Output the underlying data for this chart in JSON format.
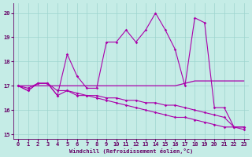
{
  "xlabel": "Windchill (Refroidissement éolien,°C)",
  "xlim": [
    -0.5,
    23.5
  ],
  "ylim": [
    14.8,
    20.4
  ],
  "yticks": [
    15,
    16,
    17,
    18,
    19,
    20
  ],
  "xticks": [
    0,
    1,
    2,
    3,
    4,
    5,
    6,
    7,
    8,
    9,
    10,
    11,
    12,
    13,
    14,
    15,
    16,
    17,
    18,
    19,
    20,
    21,
    22,
    23
  ],
  "bg_color": "#c5ece6",
  "line_color": "#aa00aa",
  "grid_color": "#9dd5ce",
  "series": {
    "wiggly": [
      17.0,
      16.8,
      17.1,
      17.1,
      16.6,
      18.3,
      17.4,
      16.9,
      16.9,
      18.8,
      18.8,
      19.3,
      18.8,
      19.3,
      20.0,
      19.3,
      18.5,
      17.0,
      19.8,
      19.6,
      16.1,
      16.1,
      15.3,
      15.3
    ],
    "flat": [
      17.0,
      17.0,
      17.0,
      17.0,
      17.0,
      17.0,
      17.0,
      17.0,
      17.0,
      17.0,
      17.0,
      17.0,
      17.0,
      17.0,
      17.0,
      17.0,
      17.0,
      17.1,
      17.2,
      17.2,
      17.2,
      17.2,
      17.2,
      17.2
    ],
    "slope1": [
      17.0,
      16.9,
      17.1,
      17.1,
      16.8,
      16.8,
      16.7,
      16.6,
      16.6,
      16.5,
      16.5,
      16.4,
      16.4,
      16.3,
      16.3,
      16.2,
      16.2,
      16.1,
      16.0,
      15.9,
      15.8,
      15.7,
      15.3,
      15.3
    ],
    "slope2": [
      17.0,
      16.8,
      17.1,
      17.1,
      16.6,
      16.8,
      16.6,
      16.6,
      16.5,
      16.4,
      16.3,
      16.2,
      16.1,
      16.0,
      15.9,
      15.8,
      15.7,
      15.7,
      15.6,
      15.5,
      15.4,
      15.3,
      15.3,
      15.2
    ]
  }
}
